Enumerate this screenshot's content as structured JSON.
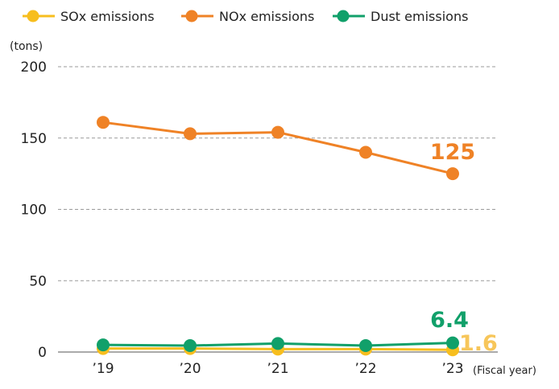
{
  "chart_data": {
    "type": "line",
    "categories": [
      "’19",
      "’20",
      "’21",
      "’22",
      "’23"
    ],
    "xlabel": "(Fiscal year)",
    "ylabel": "(tons)",
    "ylim": [
      0,
      200
    ],
    "yticks": [
      0,
      50,
      100,
      150,
      200
    ],
    "grid": "horizontal dashed",
    "legend": "top-left",
    "series": [
      {
        "name": "SOx emissions",
        "color": "#f7be1e",
        "values": [
          2.5,
          2.5,
          2.0,
          2.0,
          1.6
        ]
      },
      {
        "name": "NOx emissions",
        "color": "#ef8226",
        "values": [
          161,
          153,
          154,
          140,
          125
        ]
      },
      {
        "name": "Dust emissions",
        "color": "#11a06a",
        "values": [
          5.0,
          4.5,
          6.0,
          4.5,
          6.4
        ]
      }
    ],
    "data_labels": [
      {
        "series": "NOx emissions",
        "text": "125",
        "color": "#ef8226"
      },
      {
        "series": "Dust emissions",
        "text": "6.4",
        "color": "#11a06a"
      },
      {
        "series": "SOx emissions",
        "text": "1.6",
        "color": "#f7c65a"
      }
    ]
  }
}
